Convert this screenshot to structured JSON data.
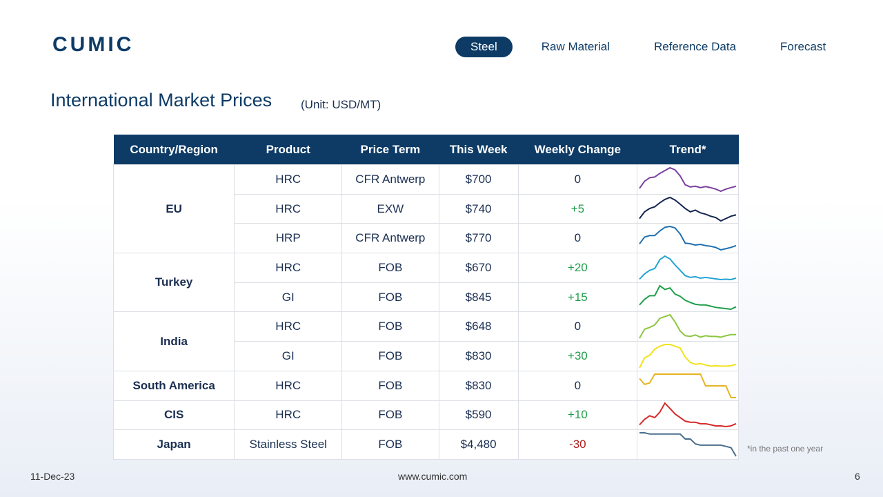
{
  "nav": {
    "logo": "CUMIC",
    "items": [
      "Steel",
      "Raw Material",
      "Reference Data",
      "Forecast"
    ],
    "active": "Steel"
  },
  "title": "International Market Prices",
  "unit": "(Unit: USD/MT)",
  "table": {
    "header": [
      "Country/Region",
      "Product",
      "Price Term",
      "This Week",
      "Weekly Change",
      "Trend*"
    ],
    "groups": [
      {
        "region": "EU",
        "rows": [
          {
            "product": "HRC",
            "term": "CFR Antwerp",
            "price": "$700",
            "change": "0",
            "trend": {
              "color": "#7b3fa0",
              "values": [
                20,
                40,
                50,
                52,
                62,
                70,
                78,
                72,
                55,
                30,
                24,
                26,
                22,
                25,
                22,
                18,
                12,
                18,
                22,
                26
              ]
            }
          },
          {
            "product": "HRC",
            "term": "EXW",
            "price": "$740",
            "change": "+5",
            "trend": {
              "color": "#14244f",
              "values": [
                15,
                35,
                45,
                50,
                62,
                72,
                78,
                70,
                58,
                45,
                35,
                40,
                32,
                28,
                22,
                18,
                8,
                15,
                22,
                26
              ]
            }
          },
          {
            "product": "HRP",
            "term": "CFR Antwerp",
            "price": "$770",
            "change": "0",
            "trend": {
              "color": "#1f6fb0",
              "values": [
                28,
                50,
                55,
                55,
                70,
                82,
                85,
                80,
                60,
                30,
                28,
                24,
                26,
                22,
                20,
                16,
                8,
                12,
                16,
                22
              ]
            }
          }
        ]
      },
      {
        "region": "Turkey",
        "rows": [
          {
            "product": "HRC",
            "term": "FOB",
            "price": "$670",
            "change": "+20",
            "trend": {
              "color": "#22a3d3",
              "values": [
                15,
                30,
                40,
                45,
                70,
                80,
                72,
                55,
                40,
                25,
                20,
                22,
                18,
                20,
                18,
                16,
                14,
                15,
                14,
                18
              ]
            }
          },
          {
            "product": "GI",
            "term": "FOB",
            "price": "$845",
            "change": "+15",
            "trend": {
              "color": "#1f9e4a",
              "values": [
                20,
                38,
                50,
                50,
                82,
                70,
                75,
                55,
                48,
                35,
                28,
                22,
                20,
                20,
                16,
                12,
                10,
                8,
                6,
                14
              ]
            }
          }
        ]
      },
      {
        "region": "India",
        "rows": [
          {
            "product": "HRC",
            "term": "FOB",
            "price": "$648",
            "change": "0",
            "trend": {
              "color": "#8cc63f",
              "values": [
                15,
                40,
                45,
                52,
                70,
                75,
                80,
                60,
                35,
                22,
                20,
                24,
                18,
                22,
                20,
                20,
                18,
                22,
                25,
                25
              ]
            }
          },
          {
            "product": "GI",
            "term": "FOB",
            "price": "$830",
            "change": "+30",
            "trend": {
              "color": "#f2e21b",
              "values": [
                10,
                38,
                45,
                62,
                70,
                75,
                75,
                70,
                65,
                40,
                25,
                20,
                22,
                18,
                15,
                16,
                15,
                15,
                16,
                20
              ]
            }
          }
        ]
      },
      {
        "region": "South America",
        "rows": [
          {
            "product": "HRC",
            "term": "FOB",
            "price": "$830",
            "change": "0",
            "trend": {
              "color": "#e6b422",
              "values": [
                75,
                55,
                60,
                90,
                90,
                90,
                90,
                90,
                90,
                90,
                90,
                90,
                90,
                50,
                50,
                50,
                50,
                50,
                10,
                10
              ]
            }
          }
        ]
      },
      {
        "region": "CIS",
        "rows": [
          {
            "product": "HRC",
            "term": "FOB",
            "price": "$590",
            "change": "+10",
            "trend": {
              "color": "#d62828",
              "values": [
                15,
                30,
                40,
                35,
                50,
                75,
                60,
                45,
                35,
                25,
                22,
                22,
                18,
                18,
                15,
                12,
                12,
                10,
                12,
                18
              ]
            }
          }
        ]
      },
      {
        "region": "Japan",
        "rows": [
          {
            "product": "Stainless Steel",
            "term": "FOB",
            "price": "$4,480",
            "change": "-30",
            "trend": {
              "color": "#4a6d8c",
              "values": [
                95,
                95,
                90,
                90,
                90,
                90,
                90,
                90,
                90,
                70,
                70,
                50,
                45,
                45,
                45,
                45,
                45,
                40,
                35,
                0
              ]
            }
          }
        ]
      }
    ]
  },
  "note": "*in the past one year",
  "footer": {
    "date": "11-Dec-23",
    "site": "www.cumic.com",
    "page": "6"
  }
}
